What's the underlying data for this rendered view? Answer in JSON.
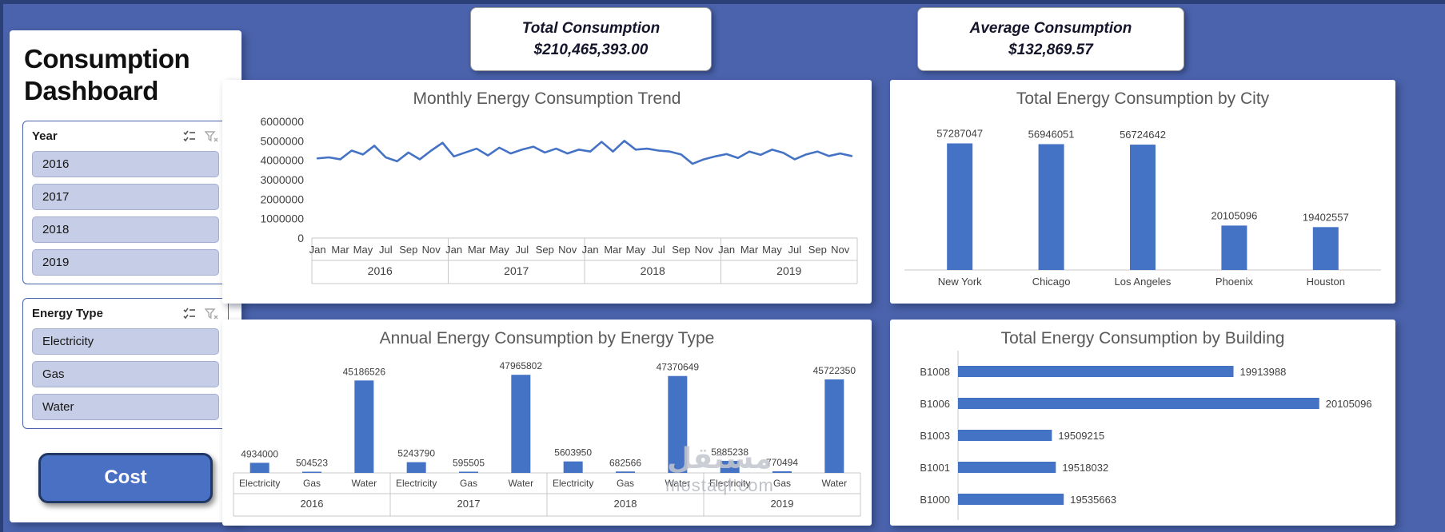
{
  "page": {
    "background_color": "#4a63ac",
    "accent_color": "#4472c4",
    "chart_title_color": "#595959"
  },
  "sidebar": {
    "title": "Consumption Dashboard",
    "slicers": [
      {
        "name": "Year",
        "items": [
          "2016",
          "2017",
          "2018",
          "2019"
        ],
        "icons": [
          "multi-select-icon",
          "clear-filter-icon"
        ]
      },
      {
        "name": "Energy Type",
        "items": [
          "Electricity",
          "Gas",
          "Water"
        ],
        "icons": [
          "multi-select-icon",
          "clear-filter-icon"
        ]
      }
    ],
    "cost_button_label": "Cost"
  },
  "kpi_cards": [
    {
      "title": "Total Consumption",
      "value": "$210,465,393.00"
    },
    {
      "title": "Average Consumption",
      "value": "$132,869.57"
    }
  ],
  "watermark": {
    "arabic": "مستقل",
    "latin": "mostaql.com"
  },
  "chart_data": [
    {
      "id": "monthly-trend",
      "type": "line",
      "title": "Monthly Energy Consumption Trend",
      "line_color": "#4472c4",
      "ylim": [
        0,
        6000000
      ],
      "yticks": [
        0,
        1000000,
        2000000,
        3000000,
        4000000,
        5000000,
        6000000
      ],
      "month_tick_labels": [
        "Jan",
        "Mar",
        "May",
        "Jul",
        "Sep",
        "Nov"
      ],
      "year_groups": [
        "2016",
        "2017",
        "2018",
        "2019"
      ],
      "values": [
        4100000,
        4150000,
        4050000,
        4500000,
        4300000,
        4750000,
        4150000,
        3950000,
        4400000,
        4050000,
        4500000,
        4900000,
        4200000,
        4400000,
        4600000,
        4250000,
        4650000,
        4350000,
        4550000,
        4700000,
        4400000,
        4600000,
        4350000,
        4550000,
        4450000,
        4950000,
        4450000,
        5000000,
        4550000,
        4600000,
        4500000,
        4450000,
        4300000,
        3820000,
        4050000,
        4200000,
        4320000,
        4120000,
        4450000,
        4280000,
        4550000,
        4380000,
        4050000,
        4300000,
        4450000,
        4220000,
        4350000,
        4220000
      ]
    },
    {
      "id": "city",
      "type": "bar",
      "title": "Total Energy Consumption by City",
      "categories": [
        "New York",
        "Chicago",
        "Los Angeles",
        "Phoenix",
        "Houston"
      ],
      "values": [
        57287047,
        56946051,
        56724642,
        20105096,
        19402557
      ],
      "bar_color": "#4472c4",
      "ylim": [
        0,
        60000000
      ],
      "data_labels": true
    },
    {
      "id": "energy-type",
      "type": "bar",
      "title": "Annual Energy Consumption by Energy Type",
      "categories": [
        "Electricity",
        "Gas",
        "Water",
        "Electricity",
        "Gas",
        "Water",
        "Electricity",
        "Gas",
        "Water",
        "Electricity",
        "Gas",
        "Water"
      ],
      "group_labels": [
        "2016",
        "2017",
        "2018",
        "2019"
      ],
      "values": [
        4934000,
        504523,
        45186526,
        5243790,
        595505,
        47965802,
        5603950,
        682566,
        47370649,
        5885238,
        770494,
        45722350
      ],
      "bar_color": "#4472c4",
      "ylim": [
        0,
        50000000
      ],
      "data_labels": true
    },
    {
      "id": "building",
      "type": "bar",
      "orientation": "horizontal",
      "title": "Total Energy Consumption by Building",
      "categories": [
        "B1008",
        "B1006",
        "B1003",
        "B1001",
        "B1000"
      ],
      "values": [
        19913988,
        20105096,
        19509215,
        19518032,
        19535663
      ],
      "bar_color": "#4472c4",
      "xlim": [
        19300000,
        20200000
      ],
      "data_labels": true
    }
  ]
}
